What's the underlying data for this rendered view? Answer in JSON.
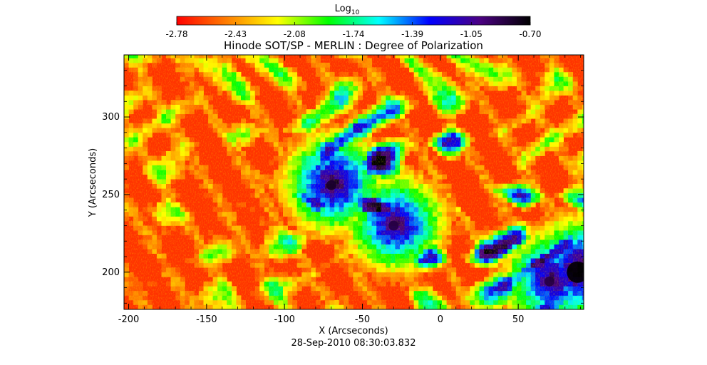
{
  "colorbar": {
    "label": "Log",
    "label_sub": "10",
    "tick_labels": [
      "-2.78",
      "-2.43",
      "-2.08",
      "-1.74",
      "-1.39",
      "-1.05",
      "-0.70"
    ],
    "range": [
      -2.78,
      -0.7
    ],
    "colormap": [
      "#ff0000",
      "#ff7f00",
      "#ffff00",
      "#00ff00",
      "#00ffff",
      "#0000ff",
      "#4b0082",
      "#000000"
    ]
  },
  "chart_data": {
    "type": "heatmap",
    "title": "Hinode SOT/SP - MERLIN : Degree of Polarization",
    "xlabel": "X (Arcseconds)",
    "ylabel": "Y (Arcseconds)",
    "xlim": [
      -203,
      92
    ],
    "ylim": [
      176,
      340
    ],
    "x_ticks": [
      -200,
      -150,
      -100,
      -50,
      0,
      50
    ],
    "y_ticks": [
      200,
      250,
      300
    ],
    "value_range": [
      -2.78,
      -0.7
    ],
    "colormap": "rainbow (red → yellow → green → cyan → blue → black)",
    "features": [
      {
        "x": -70,
        "y": 256,
        "level": -0.8
      },
      {
        "x": -30,
        "y": 230,
        "level": -0.85
      },
      {
        "x": 88,
        "y": 200,
        "level": -0.7
      },
      {
        "x": 70,
        "y": 194,
        "level": -0.85
      }
    ]
  },
  "timestamp": "28-Sep-2010 08:30:03.832"
}
